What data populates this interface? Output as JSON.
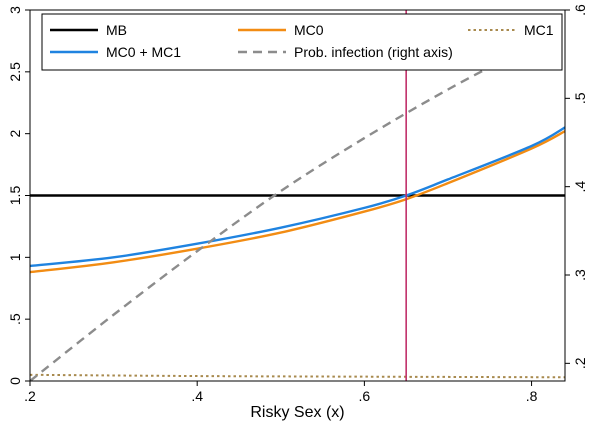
{
  "chart_data": {
    "type": "line",
    "xlabel": "Risky Sex (x)",
    "xlim": [
      0.2,
      0.84
    ],
    "ylim": [
      0,
      3
    ],
    "y2lim": [
      0.18,
      0.6
    ],
    "x_ticks": [
      {
        "value": 0.2,
        "label": ".2"
      },
      {
        "value": 0.4,
        "label": ".4"
      },
      {
        "value": 0.6,
        "label": ".6"
      },
      {
        "value": 0.8,
        "label": ".8"
      }
    ],
    "y_ticks": [
      {
        "value": 0,
        "label": "0"
      },
      {
        "value": 0.5,
        "label": ".5"
      },
      {
        "value": 1,
        "label": "1"
      },
      {
        "value": 1.5,
        "label": "1.5"
      },
      {
        "value": 2,
        "label": "2"
      },
      {
        "value": 2.5,
        "label": "2.5"
      },
      {
        "value": 3,
        "label": "3"
      }
    ],
    "y2_ticks": [
      {
        "value": 0.2,
        "label": ".2"
      },
      {
        "value": 0.3,
        "label": ".3"
      },
      {
        "value": 0.4,
        "label": ".4"
      },
      {
        "value": 0.5,
        "label": ".5"
      },
      {
        "value": 0.6,
        "label": ".6"
      }
    ],
    "vline": {
      "x": 0.65,
      "color": "#c0306a"
    },
    "series": [
      {
        "name": "MB",
        "color": "#000000",
        "dash": "solid",
        "axis": "left",
        "x": [
          0.2,
          0.84
        ],
        "y": [
          1.5,
          1.5
        ]
      },
      {
        "name": "MC0",
        "color": "#f28c13",
        "dash": "solid",
        "axis": "left",
        "x": [
          0.2,
          0.3,
          0.4,
          0.5,
          0.6,
          0.65,
          0.7,
          0.8,
          0.84
        ],
        "y": [
          0.88,
          0.96,
          1.07,
          1.2,
          1.37,
          1.47,
          1.6,
          1.88,
          2.02
        ]
      },
      {
        "name": "MC1",
        "color": "#a88a4e",
        "dash": "dot",
        "axis": "left",
        "x": [
          0.2,
          0.4,
          0.6,
          0.84
        ],
        "y": [
          0.05,
          0.04,
          0.035,
          0.03
        ]
      },
      {
        "name": "MC0 + MC1",
        "color": "#1f83e0",
        "dash": "solid",
        "axis": "left",
        "x": [
          0.2,
          0.3,
          0.4,
          0.5,
          0.6,
          0.65,
          0.7,
          0.8,
          0.84
        ],
        "y": [
          0.93,
          1.0,
          1.11,
          1.24,
          1.4,
          1.5,
          1.63,
          1.9,
          2.05
        ]
      },
      {
        "name": "Prob. infection (right axis)",
        "color": "#8c8c8c",
        "dash": "dash",
        "axis": "right",
        "x": [
          0.2,
          0.3,
          0.4,
          0.5,
          0.6,
          0.7,
          0.8,
          0.84
        ],
        "y": [
          0.18,
          0.255,
          0.327,
          0.395,
          0.455,
          0.51,
          0.56,
          0.58
        ]
      }
    ],
    "legend": {
      "placement": "top",
      "entries": [
        "MB",
        "MC0",
        "MC1",
        "MC0 + MC1",
        "Prob. infection (right axis)"
      ]
    }
  }
}
